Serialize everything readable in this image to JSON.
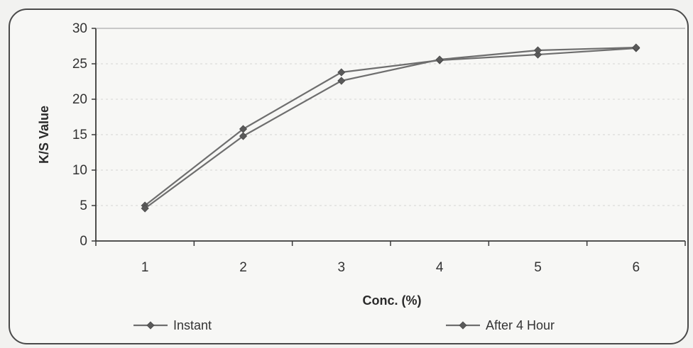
{
  "chart_data": {
    "type": "line",
    "xlabel": "Conc. (%)",
    "ylabel": "K/S Value",
    "categories": [
      "1",
      "2",
      "3",
      "4",
      "5",
      "6"
    ],
    "ylim": [
      0,
      30
    ],
    "yticks": [
      "0",
      "5",
      "10",
      "15",
      "20",
      "25",
      "30"
    ],
    "grid": true,
    "legend_position": "bottom",
    "series": [
      {
        "name": "Instant",
        "values": [
          5.0,
          15.8,
          23.8,
          25.5,
          26.3,
          27.2
        ]
      },
      {
        "name": "After 4 Hour",
        "values": [
          4.6,
          14.8,
          22.6,
          25.6,
          26.9,
          27.3
        ]
      }
    ],
    "colors": {
      "line": "#6e6e6e",
      "marker": "#5a5a5a",
      "axis": "#3a3a3a",
      "grid": "#d4d4d4"
    }
  }
}
